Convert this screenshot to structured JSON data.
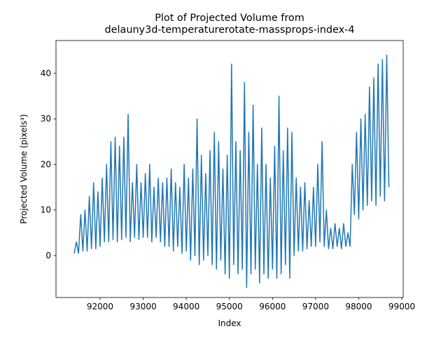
{
  "chart_data": {
    "type": "line",
    "title": "Plot of Projected Volume from\ndelauny3d-temperaturerotate-massprops-index-4",
    "xlabel": "Index",
    "ylabel": "Projected Volume (pixels³)",
    "color": "#1f77b4",
    "xlim": [
      90977,
      99032
    ],
    "ylim": [
      -9.2,
      47.2
    ],
    "xticks": [
      92000,
      93000,
      94000,
      95000,
      96000,
      97000,
      98000,
      99000
    ],
    "yticks": [
      0,
      10,
      20,
      30,
      40
    ],
    "x": [
      91400,
      91450,
      91500,
      91550,
      91600,
      91650,
      91700,
      91750,
      91800,
      91850,
      91900,
      91950,
      92000,
      92050,
      92100,
      92150,
      92200,
      92250,
      92300,
      92350,
      92400,
      92450,
      92500,
      92550,
      92600,
      92650,
      92700,
      92750,
      92800,
      92850,
      92900,
      92950,
      93000,
      93050,
      93100,
      93150,
      93200,
      93250,
      93300,
      93350,
      93400,
      93450,
      93500,
      93550,
      93600,
      93650,
      93700,
      93750,
      93800,
      93850,
      93900,
      93950,
      94000,
      94050,
      94100,
      94150,
      94200,
      94250,
      94300,
      94350,
      94400,
      94450,
      94500,
      94550,
      94600,
      94650,
      94700,
      94750,
      94800,
      94850,
      94900,
      94950,
      95000,
      95050,
      95100,
      95150,
      95200,
      95250,
      95300,
      95350,
      95400,
      95450,
      95500,
      95550,
      95600,
      95650,
      95700,
      95750,
      95800,
      95850,
      95900,
      95950,
      96000,
      96050,
      96100,
      96150,
      96200,
      96250,
      96300,
      96350,
      96400,
      96450,
      96500,
      96550,
      96600,
      96650,
      96700,
      96750,
      96800,
      96850,
      96900,
      96950,
      97000,
      97050,
      97100,
      97150,
      97200,
      97250,
      97300,
      97350,
      97400,
      97450,
      97500,
      97550,
      97600,
      97650,
      97700,
      97750,
      97800,
      97850,
      97900,
      97950,
      98000,
      98050,
      98100,
      98150,
      98200,
      98250,
      98300,
      98350,
      98400,
      98450,
      98500,
      98550,
      98600,
      98650,
      98700
    ],
    "values": [
      0.5,
      3,
      0.5,
      9,
      1,
      10,
      1,
      13,
      1.5,
      16,
      1.5,
      14,
      2,
      17,
      3,
      20,
      3,
      25,
      3.5,
      26,
      3,
      24,
      3.5,
      26,
      4,
      31,
      3,
      16,
      4,
      20,
      3.5,
      16,
      4,
      18,
      4,
      20,
      3,
      15,
      4,
      17,
      3,
      16,
      2,
      17,
      2,
      19,
      1,
      16,
      2,
      15,
      0.5,
      20,
      1,
      17,
      -1,
      19,
      0,
      30,
      -2,
      22,
      -1,
      18,
      0,
      23,
      -2,
      27,
      -3,
      25,
      -1,
      19,
      -4,
      22,
      -5,
      42,
      -2,
      25,
      -4,
      23,
      -3,
      38,
      -7,
      27,
      -4,
      33,
      -3,
      20,
      -6,
      28,
      -4,
      20,
      -5,
      17,
      -3,
      24,
      -5,
      35,
      -4,
      23,
      -2,
      28,
      -5,
      27,
      0,
      17,
      1,
      15,
      1,
      16,
      1.5,
      12,
      2,
      15,
      2,
      20,
      3,
      25,
      2,
      10,
      1.5,
      6,
      1.5,
      7,
      2,
      6,
      1.5,
      7,
      2,
      5,
      2,
      20,
      9,
      27,
      8,
      30,
      10,
      31,
      11,
      37,
      12,
      39,
      11,
      42,
      13,
      43,
      12,
      44,
      15
    ]
  }
}
